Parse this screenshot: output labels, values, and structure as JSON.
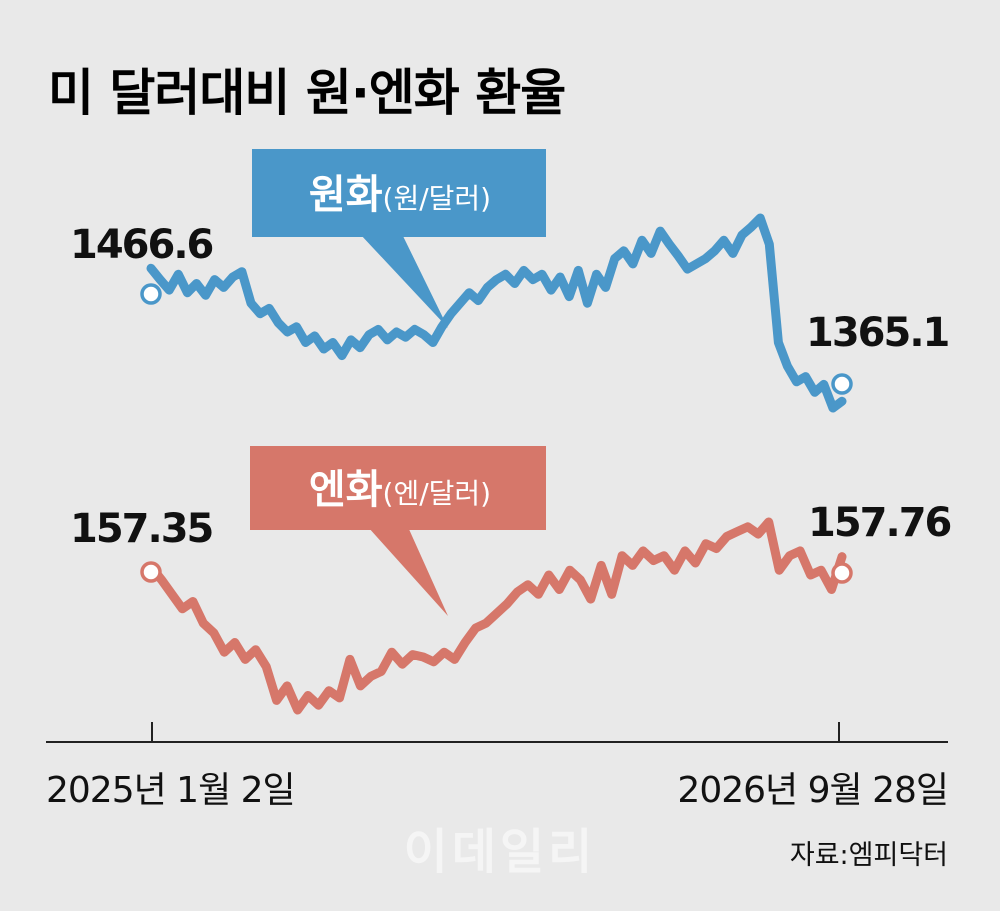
{
  "chart_data": {
    "type": "line",
    "title": "미 달러대비 원·엔화 환율",
    "x_start": "2025년 1월 2일",
    "x_end": "2026년 9월 28일",
    "source": "자료:엠피닥터",
    "watermark": "이데일리",
    "grid": false,
    "series": [
      {
        "name": "원화(원/달러)",
        "name_main": "원화",
        "name_unit": "(원/달러)",
        "color": "#4a97c9",
        "start_label": "1466.6",
        "end_label": "1365.1",
        "values": [
          1466.6,
          1458,
          1450,
          1462,
          1448,
          1455,
          1446,
          1458,
          1452,
          1460,
          1464,
          1440,
          1432,
          1436,
          1425,
          1418,
          1422,
          1410,
          1415,
          1405,
          1410,
          1400,
          1412,
          1406,
          1416,
          1420,
          1412,
          1418,
          1414,
          1420,
          1416,
          1410,
          1422,
          1432,
          1440,
          1448,
          1442,
          1452,
          1458,
          1462,
          1455,
          1465,
          1458,
          1462,
          1450,
          1460,
          1445,
          1465,
          1440,
          1462,
          1452,
          1474,
          1480,
          1470,
          1488,
          1478,
          1495,
          1485,
          1476,
          1466,
          1470,
          1474,
          1480,
          1488,
          1478,
          1492,
          1498,
          1505,
          1485,
          1410,
          1392,
          1380,
          1384,
          1372,
          1378,
          1360,
          1365.1
        ]
      },
      {
        "name": "엔화(엔/달러)",
        "name_main": "엔화",
        "name_unit": "(엔/달러)",
        "color": "#d6776a",
        "start_label": "157.35",
        "end_label": "157.76",
        "values": [
          157.35,
          156.8,
          156.2,
          155.6,
          155.9,
          155.0,
          154.6,
          153.8,
          154.2,
          153.5,
          153.9,
          153.2,
          151.8,
          152.4,
          151.4,
          152.0,
          151.6,
          152.2,
          151.9,
          153.5,
          152.4,
          152.8,
          153.0,
          153.8,
          153.3,
          153.7,
          153.6,
          153.4,
          153.8,
          153.5,
          154.2,
          154.8,
          155.0,
          155.4,
          155.8,
          156.3,
          156.6,
          156.2,
          157.0,
          156.4,
          157.2,
          156.8,
          156.0,
          157.4,
          156.2,
          157.8,
          157.4,
          158.0,
          157.6,
          157.8,
          157.2,
          158.0,
          157.5,
          158.3,
          158.1,
          158.6,
          158.8,
          159.0,
          158.7,
          159.2,
          157.2,
          157.8,
          158.0,
          157.0,
          157.2,
          156.4,
          157.76
        ]
      }
    ]
  }
}
